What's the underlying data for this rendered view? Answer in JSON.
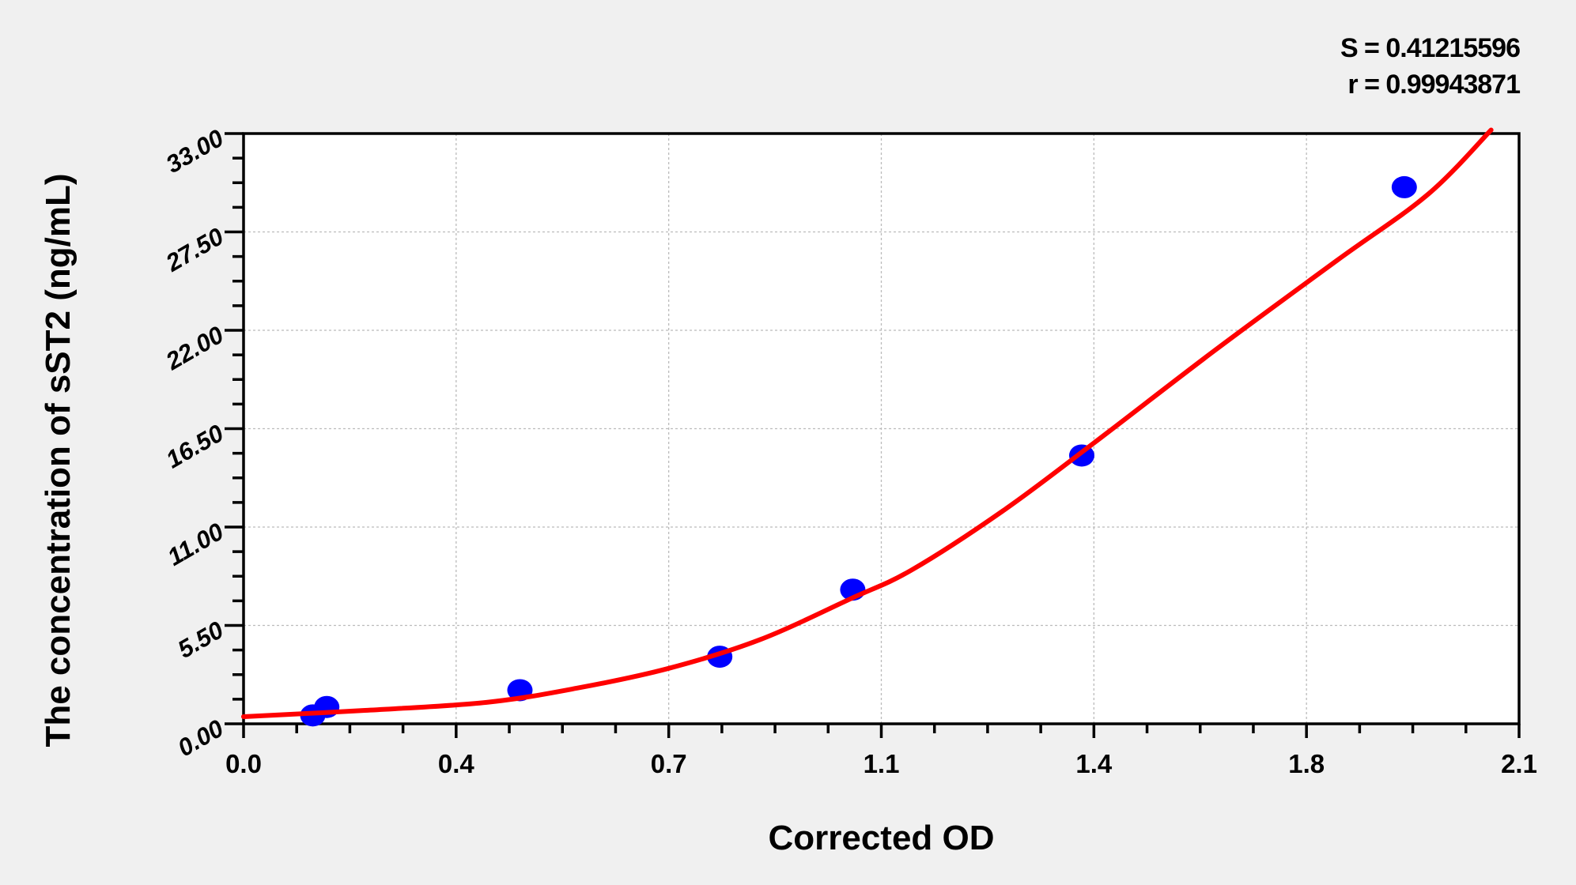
{
  "chart_data": {
    "type": "scatter",
    "title": "",
    "xlabel": "Corrected OD",
    "ylabel": "The concentration of sST2 (ng/mL)",
    "xlim": [
      0,
      2.1
    ],
    "ylim": [
      0,
      33
    ],
    "x_ticks": [
      0,
      0.35,
      0.7,
      1.05,
      1.4,
      1.75,
      2.1
    ],
    "x_tick_labels": [
      "0.0",
      "0.4",
      "0.7",
      "1.1",
      "1.4",
      "1.8",
      "2.1"
    ],
    "y_ticks": [
      0,
      5.5,
      11,
      16.5,
      22,
      27.5,
      33
    ],
    "y_tick_labels": [
      "0.00",
      "5.50",
      "11.00",
      "16.50",
      "22.00",
      "27.50",
      "33.00"
    ],
    "grid": true,
    "stats": {
      "s": "S = 0.41215596",
      "r": "r = 0.99943871"
    },
    "points": {
      "color": "#0000ff",
      "x": [
        0.114,
        0.137,
        0.455,
        0.784,
        1.003,
        1.38,
        1.911
      ],
      "y": [
        0.47,
        0.94,
        1.88,
        3.75,
        7.5,
        15,
        30
      ]
    },
    "fit_curve": {
      "color": "#ff0000",
      "x": [
        0,
        0.2,
        0.4,
        0.55,
        0.7,
        0.85,
        1.0,
        1.1,
        1.25,
        1.4,
        1.6,
        1.8,
        1.95,
        2.054
      ],
      "y": [
        0.4,
        0.75,
        1.2,
        2.0,
        3.1,
        4.7,
        7.0,
        8.6,
        11.9,
        15.7,
        20.9,
        25.9,
        29.6,
        33.2
      ]
    }
  }
}
